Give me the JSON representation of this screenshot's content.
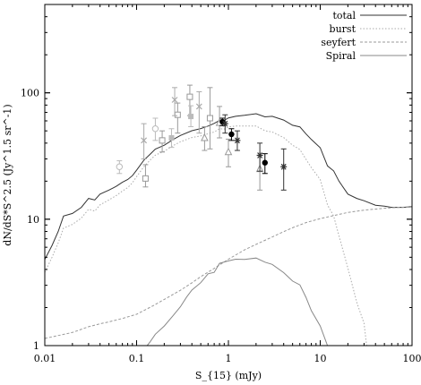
{
  "chart_data": {
    "type": "line",
    "xlabel": "S_{15} (mJy)",
    "ylabel": "dN/dS*S^2.5 (Jy^1.5 sr^-1)",
    "x_scale": "log",
    "y_scale": "log",
    "xlim": [
      0.01,
      100
    ],
    "ylim": [
      1,
      500
    ],
    "x_tick_labels": [
      "0.01",
      "0.1",
      "1",
      "10",
      "100"
    ],
    "x_tick_values": [
      0.01,
      0.1,
      1,
      10,
      100
    ],
    "y_tick_labels": [
      "1",
      "10",
      "100"
    ],
    "y_tick_values": [
      1,
      10,
      100
    ],
    "grid": false,
    "legend_position": "top-right",
    "series": [
      {
        "name": "total",
        "color": "#333333",
        "style": "solid",
        "points": [
          [
            0.01,
            4.8
          ],
          [
            0.012,
            6.2
          ],
          [
            0.014,
            8.0
          ],
          [
            0.016,
            10.6
          ],
          [
            0.02,
            11.1
          ],
          [
            0.025,
            12.4
          ],
          [
            0.03,
            14.6
          ],
          [
            0.035,
            14.2
          ],
          [
            0.04,
            15.8
          ],
          [
            0.05,
            17.0
          ],
          [
            0.06,
            18.2
          ],
          [
            0.07,
            19.6
          ],
          [
            0.08,
            20.6
          ],
          [
            0.09,
            22.1
          ],
          [
            0.1,
            24.4
          ],
          [
            0.12,
            29.3
          ],
          [
            0.14,
            32.6
          ],
          [
            0.16,
            35.9
          ],
          [
            0.2,
            38.5
          ],
          [
            0.25,
            42.7
          ],
          [
            0.3,
            46.0
          ],
          [
            0.4,
            50.1
          ],
          [
            0.5,
            52.1
          ],
          [
            0.6,
            54.6
          ],
          [
            0.7,
            57.3
          ],
          [
            0.8,
            60.5
          ],
          [
            0.9,
            60.6
          ],
          [
            1.0,
            63.3
          ],
          [
            1.2,
            65.2
          ],
          [
            1.5,
            66.4
          ],
          [
            2.0,
            68.4
          ],
          [
            2.5,
            64.6
          ],
          [
            3.0,
            65.2
          ],
          [
            4.0,
            60.9
          ],
          [
            5.0,
            55.4
          ],
          [
            6.0,
            53.8
          ],
          [
            7.0,
            47.3
          ],
          [
            8.0,
            42.7
          ],
          [
            10.0,
            36.8
          ],
          [
            12.0,
            26.4
          ],
          [
            14.0,
            24.1
          ],
          [
            16.0,
            20.0
          ],
          [
            20.0,
            15.8
          ],
          [
            25.0,
            14.6
          ],
          [
            30.0,
            14.0
          ],
          [
            40.0,
            12.9
          ],
          [
            50.0,
            12.7
          ],
          [
            60.0,
            12.4
          ],
          [
            80.0,
            12.4
          ],
          [
            100.0,
            12.6
          ]
        ]
      },
      {
        "name": "burst",
        "color": "#aaaaaa",
        "style": "dotted",
        "points": [
          [
            0.01,
            3.8
          ],
          [
            0.012,
            5.0
          ],
          [
            0.014,
            6.5
          ],
          [
            0.016,
            8.5
          ],
          [
            0.02,
            9.1
          ],
          [
            0.025,
            10.2
          ],
          [
            0.03,
            12.0
          ],
          [
            0.035,
            11.6
          ],
          [
            0.04,
            13.0
          ],
          [
            0.05,
            14.2
          ],
          [
            0.06,
            15.4
          ],
          [
            0.07,
            16.7
          ],
          [
            0.08,
            17.8
          ],
          [
            0.09,
            19.4
          ],
          [
            0.1,
            21.7
          ],
          [
            0.12,
            26.0
          ],
          [
            0.14,
            29.3
          ],
          [
            0.16,
            32.1
          ],
          [
            0.2,
            34.5
          ],
          [
            0.25,
            38.2
          ],
          [
            0.3,
            41.0
          ],
          [
            0.4,
            44.3
          ],
          [
            0.5,
            45.6
          ],
          [
            0.6,
            47.4
          ],
          [
            0.7,
            49.0
          ],
          [
            0.8,
            52.0
          ],
          [
            0.9,
            51.6
          ],
          [
            1.0,
            53.8
          ],
          [
            1.2,
            54.6
          ],
          [
            1.5,
            54.6
          ],
          [
            2.0,
            54.6
          ],
          [
            2.5,
            50.1
          ],
          [
            3.0,
            49.0
          ],
          [
            4.0,
            44.3
          ],
          [
            5.0,
            38.5
          ],
          [
            6.0,
            35.6
          ],
          [
            7.0,
            29.8
          ],
          [
            8.0,
            25.6
          ],
          [
            10.0,
            20.6
          ],
          [
            12.0,
            13.0
          ],
          [
            14.0,
            10.6
          ],
          [
            16.0,
            7.4
          ],
          [
            20.0,
            4.1
          ],
          [
            25.0,
            2.2
          ],
          [
            30.0,
            1.5
          ],
          [
            32.0,
            1.0
          ]
        ]
      },
      {
        "name": "seyfert",
        "color": "#999999",
        "style": "dashed",
        "points": [
          [
            0.01,
            1.14
          ],
          [
            0.02,
            1.27
          ],
          [
            0.03,
            1.41
          ],
          [
            0.04,
            1.49
          ],
          [
            0.05,
            1.54
          ],
          [
            0.07,
            1.64
          ],
          [
            0.1,
            1.77
          ],
          [
            0.15,
            2.06
          ],
          [
            0.2,
            2.32
          ],
          [
            0.3,
            2.74
          ],
          [
            0.4,
            3.14
          ],
          [
            0.5,
            3.51
          ],
          [
            0.7,
            4.08
          ],
          [
            1.0,
            4.83
          ],
          [
            1.5,
            5.72
          ],
          [
            2.0,
            6.33
          ],
          [
            3.0,
            7.23
          ],
          [
            4.0,
            7.98
          ],
          [
            5.0,
            8.56
          ],
          [
            7.0,
            9.4
          ],
          [
            10.0,
            10.1
          ],
          [
            15.0,
            10.8
          ],
          [
            20.0,
            11.3
          ],
          [
            30.0,
            11.8
          ],
          [
            50.0,
            12.2
          ],
          [
            70.0,
            12.4
          ],
          [
            100.0,
            12.5
          ]
        ]
      },
      {
        "name": "Spiral",
        "color": "#888888",
        "style": "solid",
        "points": [
          [
            0.13,
            1.0
          ],
          [
            0.14,
            1.07
          ],
          [
            0.16,
            1.23
          ],
          [
            0.2,
            1.43
          ],
          [
            0.25,
            1.73
          ],
          [
            0.3,
            2.03
          ],
          [
            0.35,
            2.42
          ],
          [
            0.4,
            2.75
          ],
          [
            0.5,
            3.15
          ],
          [
            0.6,
            3.7
          ],
          [
            0.7,
            3.8
          ],
          [
            0.8,
            4.48
          ],
          [
            1.0,
            4.68
          ],
          [
            1.2,
            4.83
          ],
          [
            1.5,
            4.81
          ],
          [
            2.0,
            4.93
          ],
          [
            2.5,
            4.57
          ],
          [
            3.0,
            4.39
          ],
          [
            4.0,
            3.78
          ],
          [
            5.0,
            3.24
          ],
          [
            6.0,
            3.02
          ],
          [
            7.0,
            2.41
          ],
          [
            8.0,
            1.89
          ],
          [
            10.0,
            1.43
          ],
          [
            12.0,
            1.0
          ]
        ]
      }
    ],
    "observations": [
      {
        "marker": "circle-open",
        "color": "#bbbbbb",
        "x": 0.065,
        "y": 26.0,
        "err_low": 23.0,
        "err_high": 29.0
      },
      {
        "marker": "circle-open",
        "color": "#bbbbbb",
        "x": 0.16,
        "y": 52.0,
        "err_low": 42.0,
        "err_high": 63.0
      },
      {
        "marker": "square-open",
        "color": "#999999",
        "x": 0.125,
        "y": 21.0,
        "err_low": 18.0,
        "err_high": 27.0
      },
      {
        "marker": "square-open",
        "color": "#999999",
        "x": 0.19,
        "y": 42.0,
        "err_low": 34.0,
        "err_high": 50.0
      },
      {
        "marker": "square-open",
        "color": "#999999",
        "x": 0.28,
        "y": 67.0,
        "err_low": 48.0,
        "err_high": 83.0
      },
      {
        "marker": "square-open",
        "color": "#999999",
        "x": 0.38,
        "y": 93.0,
        "err_low": 66.0,
        "err_high": 115.0
      },
      {
        "marker": "square-open",
        "color": "#999999",
        "x": 0.63,
        "y": 63.0,
        "err_low": 36.0,
        "err_high": 110.0
      },
      {
        "marker": "x",
        "color": "#aaaaaa",
        "x": 0.12,
        "y": 42.0,
        "err_low": 30.0,
        "err_high": 57.0
      },
      {
        "marker": "x",
        "color": "#aaaaaa",
        "x": 0.26,
        "y": 88.0,
        "err_low": 66.0,
        "err_high": 110.0
      },
      {
        "marker": "x",
        "color": "#aaaaaa",
        "x": 0.48,
        "y": 78.0,
        "err_low": 48.0,
        "err_high": 102.0
      },
      {
        "marker": "square-filled",
        "color": "#bbbbbb",
        "x": 0.24,
        "y": 44.0,
        "err_low": 37.0,
        "err_high": 52.0
      },
      {
        "marker": "square-filled",
        "color": "#bbbbbb",
        "x": 0.39,
        "y": 65.0,
        "err_low": 54.0,
        "err_high": 79.0
      },
      {
        "marker": "triangle-open",
        "color": "#999999",
        "x": 0.55,
        "y": 44.0,
        "err_low": 35.0,
        "err_high": 54.0
      },
      {
        "marker": "triangle-open",
        "color": "#999999",
        "x": 0.8,
        "y": 58.0,
        "err_low": 44.0,
        "err_high": 78.0
      },
      {
        "marker": "triangle-open",
        "color": "#999999",
        "x": 1.0,
        "y": 34.0,
        "err_low": 26.0,
        "err_high": 43.0
      },
      {
        "marker": "triangle-open",
        "color": "#999999",
        "x": 2.2,
        "y": 25.0,
        "err_low": 17.0,
        "err_high": 32.0
      },
      {
        "marker": "circle-filled",
        "color": "#000000",
        "x": 0.86,
        "y": 59.0,
        "err_low": 55.0,
        "err_high": 63.0
      },
      {
        "marker": "circle-filled",
        "color": "#000000",
        "x": 1.08,
        "y": 47.0,
        "err_low": 42.0,
        "err_high": 52.0
      },
      {
        "marker": "circle-filled",
        "color": "#000000",
        "x": 2.5,
        "y": 28.0,
        "err_low": 23.0,
        "err_high": 33.0
      },
      {
        "marker": "asterisk",
        "color": "#333333",
        "x": 0.92,
        "y": 57.0,
        "err_low": 48.0,
        "err_high": 67.0
      },
      {
        "marker": "asterisk",
        "color": "#333333",
        "x": 1.25,
        "y": 42.0,
        "err_low": 35.0,
        "err_high": 50.0
      },
      {
        "marker": "asterisk",
        "color": "#333333",
        "x": 2.2,
        "y": 32.0,
        "err_low": 24.0,
        "err_high": 40.0
      },
      {
        "marker": "asterisk",
        "color": "#333333",
        "x": 4.0,
        "y": 26.0,
        "err_low": 17.0,
        "err_high": 36.0
      }
    ]
  }
}
